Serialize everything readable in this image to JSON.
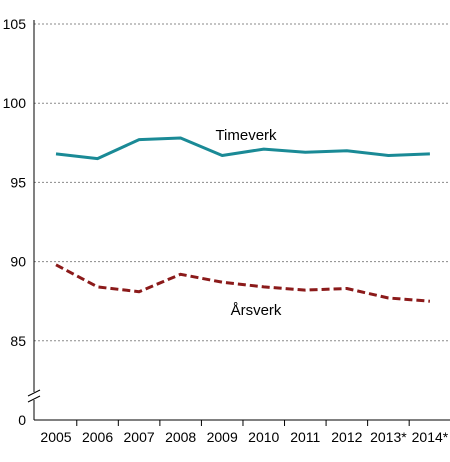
{
  "chart_data": {
    "type": "line",
    "title": "",
    "xlabel": "",
    "ylabel": "",
    "categories": [
      "2005",
      "2006",
      "2007",
      "2008",
      "2009",
      "2010",
      "2011",
      "2012",
      "2013*",
      "2014*"
    ],
    "ylim": [
      80,
      105
    ],
    "y_axis_break": true,
    "y_ticks": [
      "0",
      "85",
      "90",
      "95",
      "100",
      "105"
    ],
    "y_tick_values": [
      80,
      85,
      90,
      95,
      100,
      105
    ],
    "grid": "horizontal-dashed",
    "legend": "inline-labels",
    "series": [
      {
        "name": "Timeverk",
        "color": "#1a8a96",
        "style": "solid",
        "values": [
          96.8,
          96.5,
          97.7,
          97.8,
          96.7,
          97.1,
          96.9,
          97.0,
          96.7,
          96.8
        ]
      },
      {
        "name": "Årsverk",
        "color": "#8b1a1a",
        "style": "dashed",
        "values": [
          89.8,
          88.4,
          88.1,
          89.2,
          88.7,
          88.4,
          88.2,
          88.3,
          87.7,
          87.5
        ]
      }
    ]
  }
}
